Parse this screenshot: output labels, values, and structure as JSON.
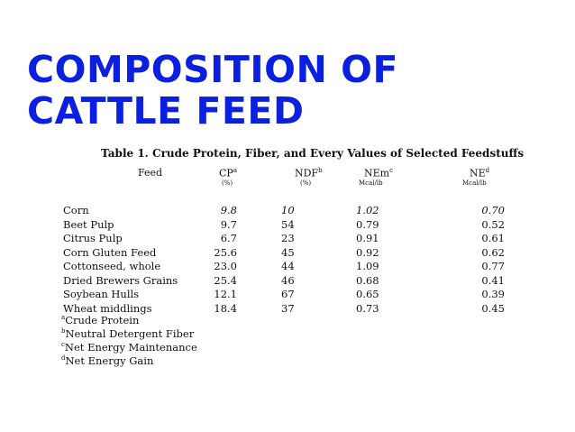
{
  "slide": {
    "title": "Composition of Cattle Feed"
  },
  "table": {
    "caption": "Table 1.  Crude Protein, Fiber, and Every Values of Selected Feedstuffs",
    "headers": [
      {
        "label": "Feed",
        "sup": "",
        "unit": ""
      },
      {
        "label": "CP",
        "sup": "a",
        "unit": "(%)"
      },
      {
        "label": "NDF",
        "sup": "b",
        "unit": "(%)"
      },
      {
        "label": "NEm",
        "sup": "c",
        "unit": "Mcal/lb"
      },
      {
        "label": "NE",
        "sup": "d",
        "unit": "Mcal/lb"
      }
    ],
    "rows": [
      {
        "feed": "Corn",
        "cp": "9.8",
        "ndf": "10",
        "nem": "1.02",
        "ne": "0.70"
      },
      {
        "feed": "Beet Pulp",
        "cp": "9.7",
        "ndf": "54",
        "nem": "0.79",
        "ne": "0.52"
      },
      {
        "feed": "Citrus Pulp",
        "cp": "6.7",
        "ndf": "23",
        "nem": "0.91",
        "ne": "0.61"
      },
      {
        "feed": "Corn Gluten Feed",
        "cp": "25.6",
        "ndf": "45",
        "nem": "0.92",
        "ne": "0.62"
      },
      {
        "feed": "Cottonseed, whole",
        "cp": "23.0",
        "ndf": "44",
        "nem": "1.09",
        "ne": "0.77"
      },
      {
        "feed": "Dried Brewers Grains",
        "cp": "25.4",
        "ndf": "46",
        "nem": "0.68",
        "ne": "0.41"
      },
      {
        "feed": "Soybean Hulls",
        "cp": "12.1",
        "ndf": "67",
        "nem": "0.65",
        "ne": "0.39"
      },
      {
        "feed": "Wheat middlings",
        "cp": "18.4",
        "ndf": "37",
        "nem": "0.73",
        "ne": "0.45"
      }
    ],
    "footnotes": [
      {
        "sup": "a",
        "text": "Crude Protein"
      },
      {
        "sup": "b",
        "text": "Neutral Detergent Fiber"
      },
      {
        "sup": "c",
        "text": "Net Energy Maintenance"
      },
      {
        "sup": "d",
        "text": "Net Energy Gain"
      }
    ]
  }
}
